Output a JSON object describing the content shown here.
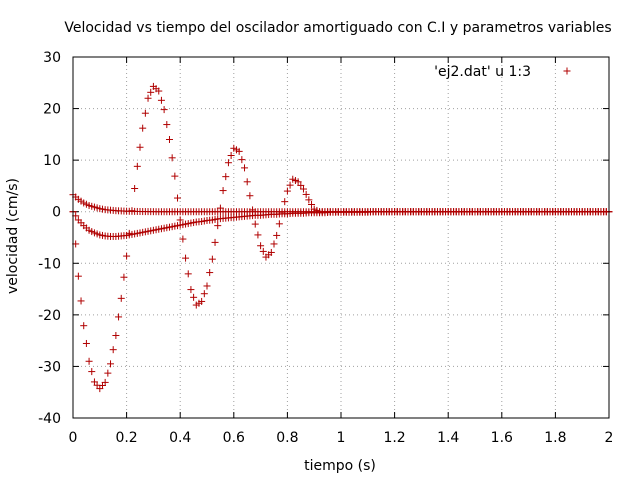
{
  "chart_data": {
    "type": "scatter",
    "title": "Velocidad vs tiempo del oscilador amortiguado con C.I y parametros variables",
    "xlabel": "tiempo (s)",
    "ylabel": "velocidad (cm/s)",
    "xlim": [
      0,
      2
    ],
    "ylim": [
      -40,
      30
    ],
    "grid": true,
    "legend_position": "top-right",
    "marker": "plus",
    "marker_color": "#b00000",
    "x_ticks": [
      0,
      0.2,
      0.4,
      0.6,
      0.8,
      1,
      1.2,
      1.4,
      1.6,
      1.8,
      2
    ],
    "x_tick_labels": [
      "0",
      "0.2",
      "0.4",
      "0.6",
      "0.8",
      "1",
      "1.2",
      "1.4",
      "1.6",
      "1.8",
      "2"
    ],
    "y_ticks": [
      -40,
      -30,
      -20,
      -10,
      0,
      10,
      20,
      30
    ],
    "y_tick_labels": [
      "-40",
      "-30",
      "-20",
      "-10",
      "0",
      "10",
      "20",
      "30"
    ],
    "legend": [
      {
        "label": "'ej2.dat' u 1:3",
        "color": "#b00000",
        "marker": "plus"
      }
    ],
    "series": [
      {
        "x": [
          0,
          0.02,
          0.04,
          0.06,
          0.08,
          0.1,
          0.12,
          0.14,
          0.16,
          0.18,
          0.2,
          0.22,
          0.24,
          0.26,
          0.28,
          0.3,
          0.32,
          0.34,
          0.36,
          0.38,
          0.4,
          0.42,
          0.44,
          0.46,
          0.48,
          0.5,
          0.52,
          0.54,
          0.56,
          0.58,
          0.6,
          0.62,
          0.64,
          0.66,
          0.68,
          0.7,
          0.72,
          0.74,
          0.76,
          0.78,
          0.8,
          0.82,
          0.84,
          0.86,
          0.88,
          0.9,
          0.92,
          0.94,
          0.96,
          0.98,
          1,
          1.02,
          1.04,
          1.06,
          1.08,
          1.1,
          1.12,
          1.14,
          1.16,
          1.18,
          1.2,
          1.22,
          1.24,
          1.26,
          1.28,
          1.3,
          1.32,
          1.34,
          1.36,
          1.38,
          1.4,
          1.42,
          1.44,
          1.46,
          1.48,
          1.5,
          1.52,
          1.54,
          1.56,
          1.58,
          1.6,
          1.62,
          1.64,
          1.66,
          1.68,
          1.7,
          1.72,
          1.74,
          1.76,
          1.78,
          1.8,
          1.82,
          1.84,
          1.86,
          1.88,
          1.9,
          1.92,
          1.94,
          1.96,
          1.98,
          2
        ],
        "y": [
          0,
          -12.5,
          -22.1,
          -29.0,
          -33.0,
          -34.3,
          -33.1,
          -29.5,
          -24.0,
          -16.8,
          -8.6,
          0.2,
          8.8,
          16.2,
          22.0,
          24.3,
          23.4,
          19.8,
          14.0,
          6.9,
          -1.6,
          -9.0,
          -15.1,
          -18.1,
          -17.4,
          -14.4,
          -9.2,
          -2.7,
          4.1,
          9.5,
          12.3,
          11.7,
          8.5,
          3.1,
          -2.4,
          -6.6,
          -8.8,
          -7.9,
          -4.6,
          -0.1,
          4.0,
          6.3,
          5.8,
          4.4,
          2.3,
          0.5,
          0,
          0,
          0,
          0,
          0,
          0,
          0,
          0,
          0,
          0,
          0,
          0,
          0,
          0,
          0,
          0,
          0,
          0,
          0,
          0,
          0,
          0,
          0,
          0,
          0,
          0,
          0,
          0,
          0,
          0,
          0,
          0,
          0,
          0,
          0,
          0,
          0,
          0,
          0,
          0,
          0,
          0,
          0,
          0,
          0,
          0,
          0,
          0,
          0,
          0,
          0,
          0,
          0,
          0,
          0
        ]
      },
      {
        "x": [
          0,
          0.02,
          0.04,
          0.06,
          0.08,
          0.1,
          0.12,
          0.14,
          0.16,
          0.18,
          0.2,
          0.22,
          0.24,
          0.26,
          0.28,
          0.3,
          0.32,
          0.34,
          0.36,
          0.38,
          0.4,
          0.42,
          0.44,
          0.46,
          0.48,
          0.5,
          0.52,
          0.54,
          0.56,
          0.58,
          0.6,
          0.62,
          0.64,
          0.66,
          0.68,
          0.7,
          0.72,
          0.74,
          0.76,
          0.78,
          0.8,
          0.82,
          0.84,
          0.86,
          0.88,
          0.9,
          0.92,
          0.94,
          0.96,
          0.98,
          1,
          1.02,
          1.04,
          1.06,
          1.08,
          1.1,
          1.12,
          1.14,
          1.16,
          1.18,
          1.2,
          1.22,
          1.24,
          1.26,
          1.28,
          1.3,
          1.32,
          1.34,
          1.36,
          1.38,
          1.4,
          1.42,
          1.44,
          1.46,
          1.48,
          1.5,
          1.52,
          1.54,
          1.56,
          1.58,
          1.6,
          1.62,
          1.64,
          1.66,
          1.68,
          1.7,
          1.72,
          1.74,
          1.76,
          1.78,
          1.8,
          1.82,
          1.84,
          1.86,
          1.88,
          1.9,
          1.92,
          1.94,
          1.96,
          1.98,
          2
        ],
        "y": [
          0,
          -1.6,
          -2.7,
          -3.6,
          -4.1,
          -4.5,
          -4.7,
          -4.8,
          -4.8,
          -4.7,
          -4.6,
          -4.4,
          -4.2,
          -4.0,
          -3.8,
          -3.6,
          -3.4,
          -3.2,
          -3.0,
          -2.8,
          -2.6,
          -2.4,
          -2.2,
          -2.0,
          -1.9,
          -1.7,
          -1.6,
          -1.4,
          -1.3,
          -1.2,
          -1.1,
          -1.0,
          -0.9,
          -0.8,
          -0.7,
          -0.7,
          -0.6,
          -0.5,
          -0.5,
          -0.4,
          -0.4,
          -0.3,
          -0.3,
          -0.3,
          -0.2,
          -0.2,
          -0.2,
          -0.2,
          -0.1,
          -0.1,
          -0.1,
          -0.1,
          -0.1,
          -0.1,
          -0.1,
          -0.1,
          0,
          0,
          0,
          0,
          0,
          0,
          0,
          0,
          0,
          0,
          0,
          0,
          0,
          0,
          0,
          0,
          0,
          0,
          0,
          0,
          0,
          0,
          0,
          0,
          0,
          0,
          0,
          0,
          0,
          0,
          0,
          0,
          0,
          0,
          0,
          0,
          0,
          0,
          0,
          0,
          0,
          0,
          0,
          0,
          0
        ]
      },
      {
        "x": [
          0,
          0.02,
          0.04,
          0.06,
          0.08,
          0.1,
          0.12,
          0.14,
          0.16,
          0.18,
          0.2,
          0.22,
          0.24,
          0.26,
          0.28,
          0.3,
          0.32,
          0.34,
          0.36,
          0.38,
          0.4,
          0.42,
          0.44,
          0.46,
          0.48,
          0.5,
          0.52,
          0.54,
          0.56,
          0.58,
          0.6,
          0.62,
          0.64,
          0.66,
          0.68,
          0.7,
          0.72,
          0.74,
          0.76,
          0.78,
          0.8,
          0.82,
          0.84,
          0.86,
          0.88,
          0.9,
          0.92,
          0.94,
          0.96,
          0.98,
          1,
          1.02,
          1.04,
          1.06,
          1.08,
          1.1,
          1.12,
          1.14,
          1.16,
          1.18,
          1.2,
          1.22,
          1.24,
          1.26,
          1.28,
          1.3,
          1.32,
          1.34,
          1.36,
          1.38,
          1.4,
          1.42,
          1.44,
          1.46,
          1.48,
          1.5,
          1.52,
          1.54,
          1.56,
          1.58,
          1.6,
          1.62,
          1.64,
          1.66,
          1.68,
          1.7,
          1.72,
          1.74,
          1.76,
          1.78,
          1.8,
          1.82,
          1.84,
          1.86,
          1.88,
          1.9,
          1.92,
          1.94,
          1.96,
          1.98,
          2
        ],
        "y": [
          3.3,
          2.4,
          1.7,
          1.2,
          0.9,
          0.6,
          0.4,
          0.3,
          0.2,
          0.15,
          0.1,
          0.07,
          0.05,
          0.03,
          0.02,
          0.01,
          0,
          0,
          0,
          0,
          0,
          0,
          0,
          0,
          0,
          0,
          0,
          0,
          0,
          0,
          0,
          0,
          0,
          0,
          0,
          0,
          0,
          0,
          0,
          0,
          0,
          0,
          0,
          0,
          0,
          0,
          0,
          0,
          0,
          0,
          0,
          0,
          0,
          0,
          0,
          0,
          0,
          0,
          0,
          0,
          0,
          0,
          0,
          0,
          0,
          0,
          0,
          0,
          0,
          0,
          0,
          0,
          0,
          0,
          0,
          0,
          0,
          0,
          0,
          0,
          0,
          0,
          0,
          0,
          0,
          0,
          0,
          0,
          0,
          0,
          0,
          0,
          0,
          0,
          0,
          0,
          0,
          0,
          0,
          0,
          0
        ]
      }
    ]
  }
}
